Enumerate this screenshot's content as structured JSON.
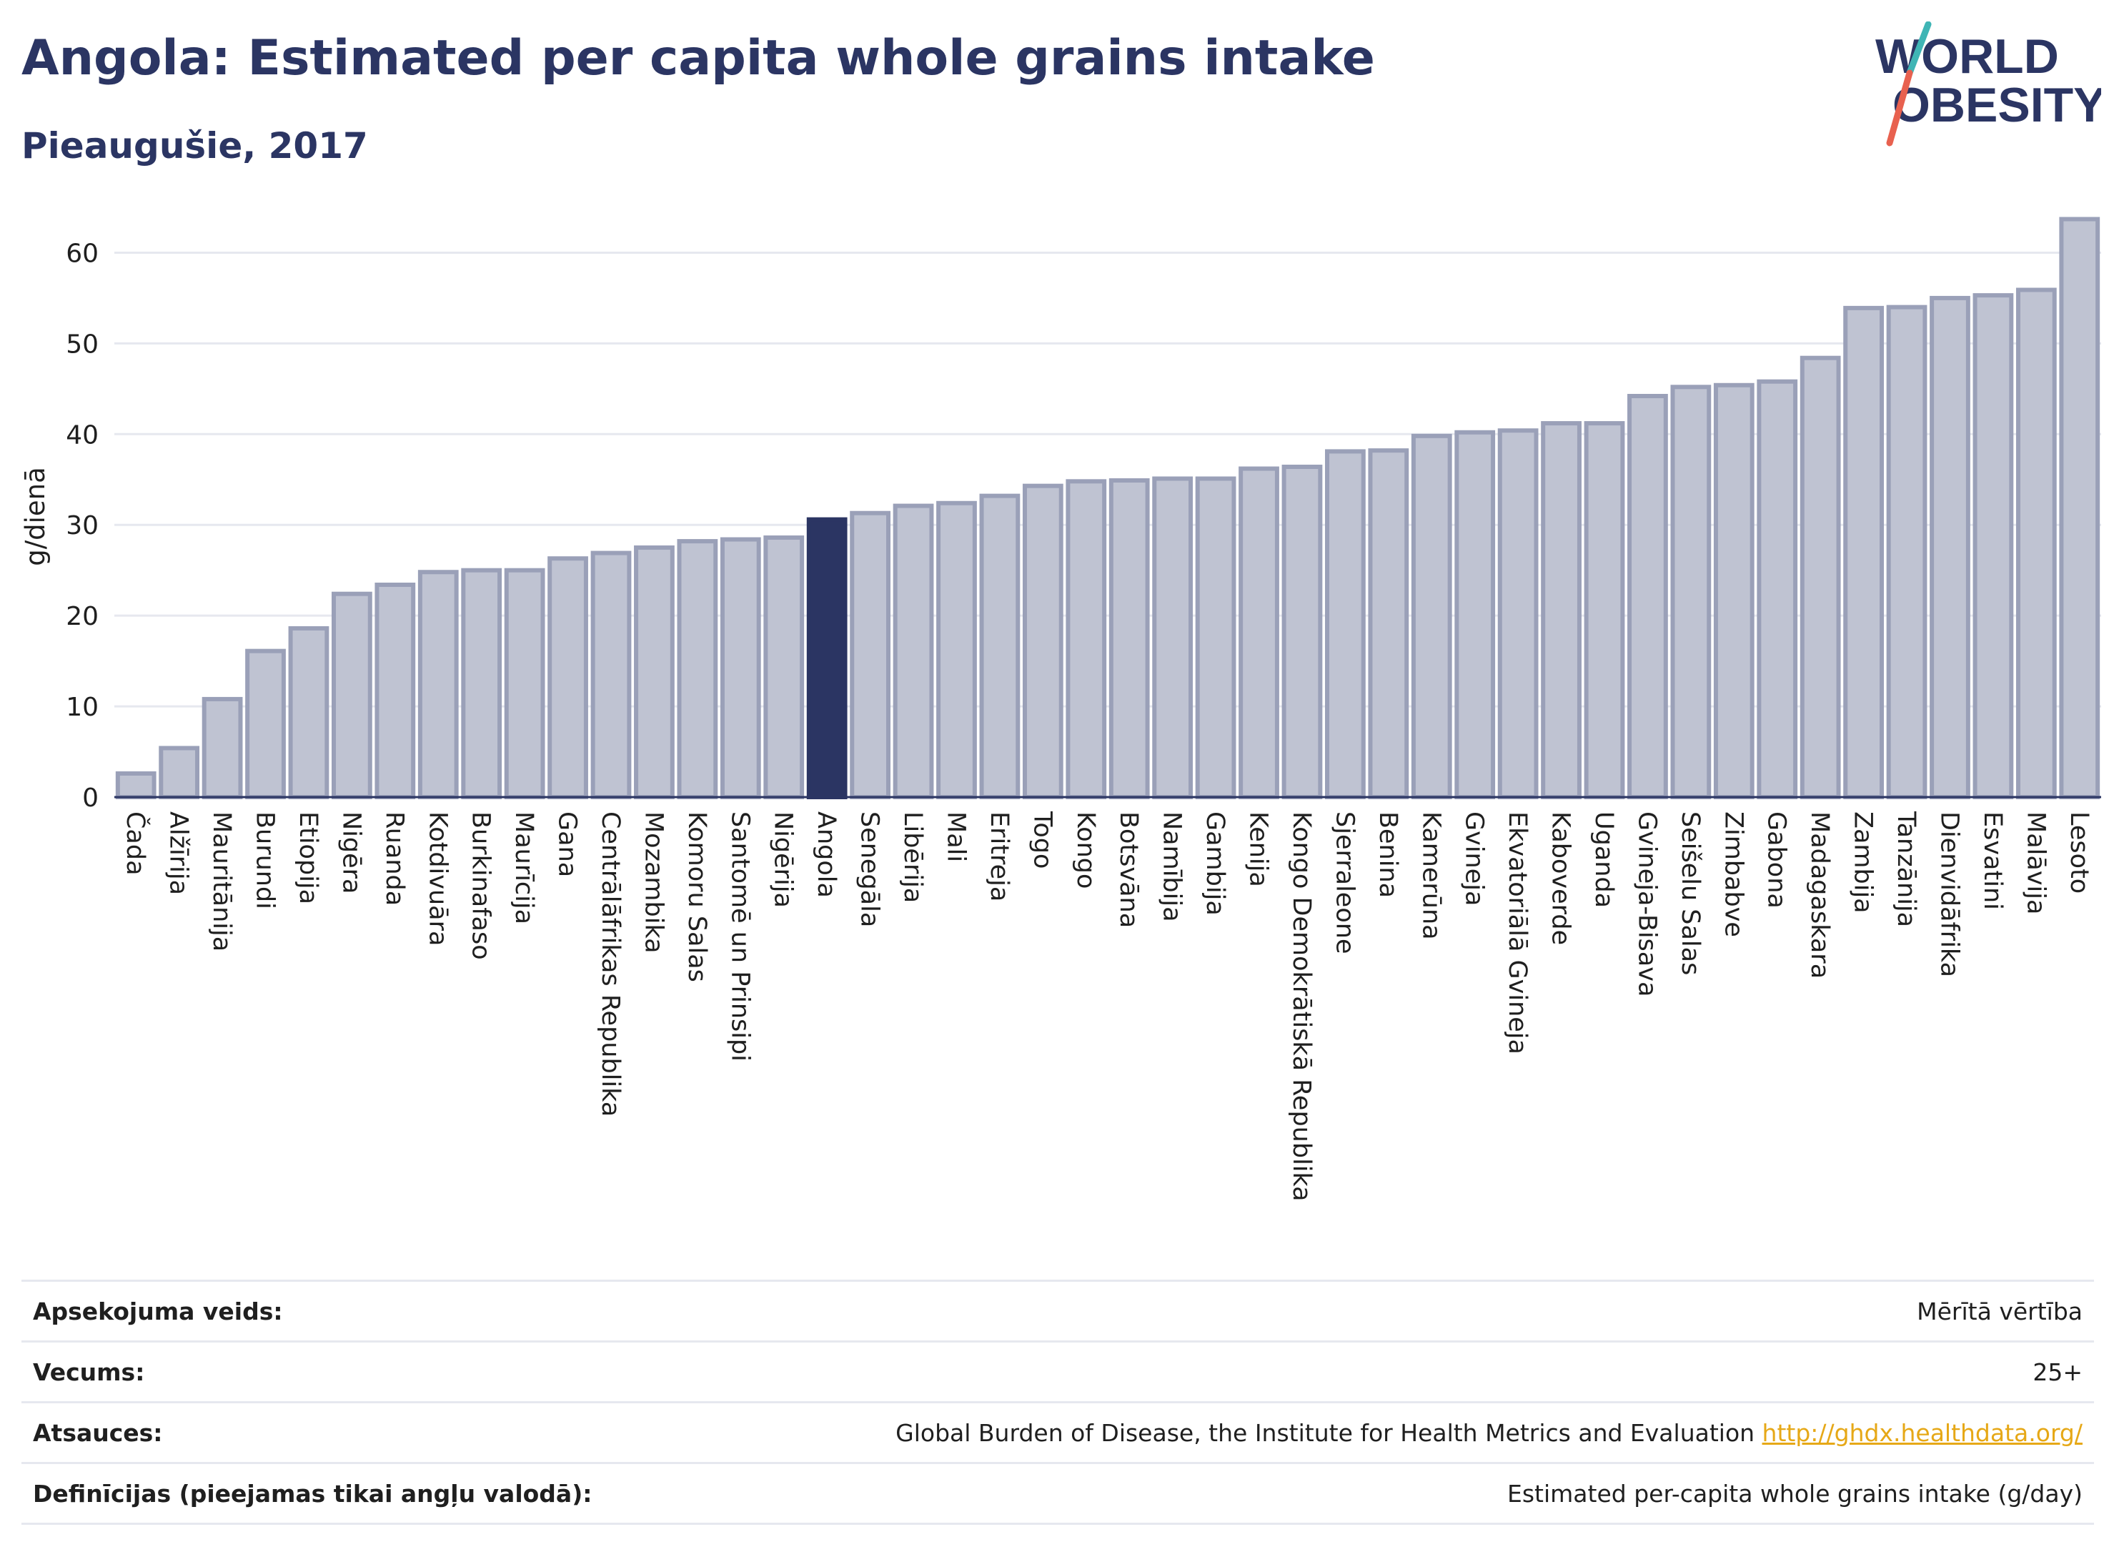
{
  "header": {
    "title": "Angola: Estimated per capita whole grains intake",
    "subtitle": "Pieaugušie, 2017"
  },
  "logo": {
    "line1": "WORLD",
    "line2": "OBESITY",
    "accent_teal": "#3fb5b5",
    "accent_red": "#e8614f"
  },
  "chart_data": {
    "type": "bar",
    "ylabel": "g/dienā",
    "ylim": [
      0,
      65
    ],
    "yticks": [
      0,
      10,
      20,
      30,
      40,
      50,
      60
    ],
    "grid": true,
    "highlight": "Angola",
    "colors": {
      "bar": "#bfc3d2",
      "bar_border": "#9aa0b8",
      "highlight": "#2b3563"
    },
    "categories": [
      "Čada",
      "Alžīrija",
      "Mauritānija",
      "Burundi",
      "Etiopija",
      "Nigēra",
      "Ruanda",
      "Kotdivuāra",
      "Burkinafaso",
      "Maurīcija",
      "Gana",
      "Centrālāfrikas Republika",
      "Mozambika",
      "Komoru Salas",
      "Santomē un Prinsipi",
      "Nigērija",
      "Angola",
      "Senegāla",
      "Libērija",
      "Mali",
      "Eritreja",
      "Togo",
      "Kongo",
      "Botsvāna",
      "Namībija",
      "Gambija",
      "Kenija",
      "Kongo Demokrātiskā Republika",
      "Sjerraleone",
      "Benina",
      "Kamerūna",
      "Gvineja",
      "Ekvatoriālā Gvineja",
      "Kaboverde",
      "Uganda",
      "Gvineja-Bisava",
      "Seišelu Salas",
      "Zimbabve",
      "Gabona",
      "Madagaskara",
      "Zambija",
      "Tanzānija",
      "Dienvidāfrika",
      "Esvatini",
      "Malāvija",
      "Lesoto"
    ],
    "values": [
      2.6,
      5.4,
      10.8,
      16.1,
      18.6,
      22.4,
      23.4,
      24.8,
      25.0,
      25.0,
      26.3,
      26.9,
      27.5,
      28.2,
      28.4,
      28.6,
      30.6,
      31.3,
      32.1,
      32.4,
      33.2,
      34.3,
      34.8,
      34.9,
      35.1,
      35.1,
      36.2,
      36.4,
      38.1,
      38.2,
      39.8,
      40.2,
      40.4,
      41.2,
      41.2,
      44.2,
      45.2,
      45.4,
      45.8,
      48.4,
      53.9,
      54.0,
      55.0,
      55.3,
      55.9,
      63.7
    ]
  },
  "info": [
    {
      "label": "Apsekojuma veids:",
      "value": "Mērītā vērtība"
    },
    {
      "label": "Vecums:",
      "value": "25+"
    },
    {
      "label": "Atsauces:",
      "value": "Global Burden of Disease, the Institute for Health Metrics and Evaluation",
      "link": "http://ghdx.healthdata.org/"
    },
    {
      "label": "Definīcijas (pieejamas tikai angļu valodā):",
      "value": "Estimated per-capita whole grains intake (g/day)"
    }
  ]
}
